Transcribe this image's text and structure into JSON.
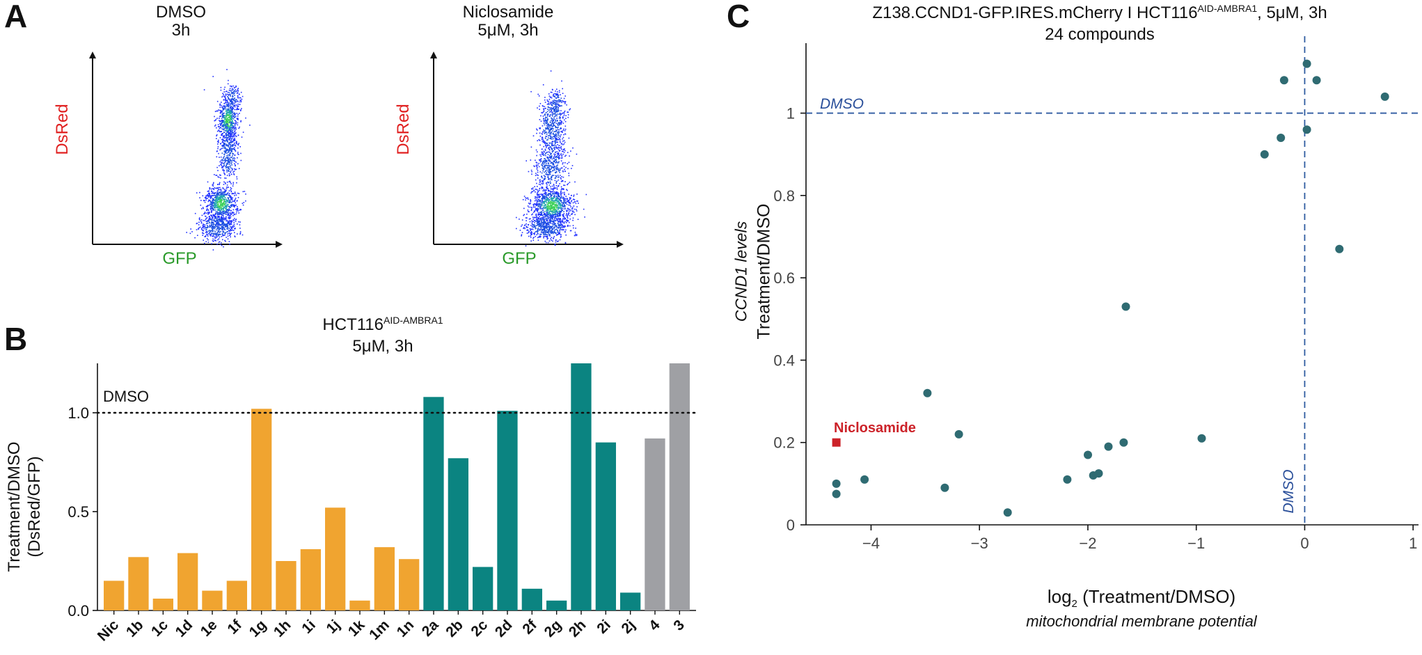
{
  "panel_a": {
    "letter": "A",
    "plots": [
      {
        "title_line1": "DMSO",
        "title_line2": "3h",
        "ylabel": "DsRed",
        "xlabel": "GFP"
      },
      {
        "title_line1": "Niclosamide",
        "title_line2": "5μM, 3h",
        "ylabel": "DsRed",
        "xlabel": "GFP"
      }
    ]
  },
  "panel_b": {
    "letter": "B",
    "title_main": "HCT116",
    "title_sup": "AID-AMBRA1",
    "title_line2": "5μM, 3h",
    "ref_label": "DMSO",
    "ylabel_line1": "Treatment/DMSO",
    "ylabel_line2": "(DsRed/GFP)"
  },
  "panel_c": {
    "letter": "C",
    "title_part1": "Z138.CCND1-GFP.IRES.mCherry I HCT116",
    "title_sup": "AID-AMBRA1",
    "title_part2": ", 5μM, 3h",
    "subtitle": "24 compounds",
    "ylabel_italic": "CCND1 levels",
    "ylabel": "Treatment/DMSO",
    "xlabel_prefix": "log",
    "xlabel_sub": "2",
    "xlabel_suffix": " (Treatment/DMSO)",
    "xlabel_italic": "mitochondrial membrane potential",
    "hline_label": "DMSO",
    "vline_label": "DMSO",
    "highlight_label": "Niclosamide"
  },
  "chart_data": [
    {
      "type": "bar",
      "categories": [
        "Nic",
        "1b",
        "1c",
        "1d",
        "1e",
        "1f",
        "1g",
        "1h",
        "1i",
        "1j",
        "1k",
        "1m",
        "1n",
        "2a",
        "2b",
        "2c",
        "2d",
        "2f",
        "2g",
        "2h",
        "2i",
        "2j",
        "4",
        "3"
      ],
      "values": [
        0.15,
        0.27,
        0.06,
        0.29,
        0.1,
        0.15,
        1.02,
        0.25,
        0.31,
        0.52,
        0.05,
        0.32,
        0.26,
        1.08,
        0.77,
        0.22,
        1.01,
        0.11,
        0.05,
        1.25,
        0.85,
        0.09,
        0.87,
        1.25
      ],
      "group_colors": [
        "#f0a430",
        "#f0a430",
        "#f0a430",
        "#f0a430",
        "#f0a430",
        "#f0a430",
        "#f0a430",
        "#f0a430",
        "#f0a430",
        "#f0a430",
        "#f0a430",
        "#f0a430",
        "#f0a430",
        "#0b8481",
        "#0b8481",
        "#0b8481",
        "#0b8481",
        "#0b8481",
        "#0b8481",
        "#0b8481",
        "#0b8481",
        "#0b8481",
        "#9fa0a4",
        "#9fa0a4"
      ],
      "ylim": [
        0,
        1.25
      ],
      "yticks": [
        "0.0",
        "0.5",
        "1.0"
      ],
      "reference_line": 1.0
    },
    {
      "type": "scatter",
      "xlim": [
        -4.6,
        1.05
      ],
      "ylim": [
        0,
        1.17
      ],
      "xticks": [
        "−4",
        "−3",
        "−2",
        "−1",
        "0",
        "1"
      ],
      "yticks": [
        "0",
        "0.2",
        "0.4",
        "0.6",
        "0.8",
        "1"
      ],
      "reference_lines": {
        "x": 0,
        "y": 1
      },
      "points_x": [
        -4.32,
        -4.32,
        -4.06,
        -3.48,
        -3.32,
        -3.19,
        -2.74,
        -2.19,
        -2.0,
        -1.95,
        -1.9,
        -1.81,
        -1.67,
        -1.65,
        -0.95,
        -0.37,
        -0.22,
        -0.19,
        0.02,
        0.02,
        0.11,
        0.32,
        0.74
      ],
      "points_y": [
        0.1,
        0.075,
        0.11,
        0.32,
        0.09,
        0.22,
        0.03,
        0.11,
        0.17,
        0.12,
        0.125,
        0.19,
        0.2,
        0.53,
        0.21,
        0.9,
        0.94,
        1.08,
        0.96,
        1.12,
        1.08,
        0.67,
        1.04
      ],
      "highlight": {
        "name": "Niclosamide",
        "x": -4.32,
        "y": 0.2
      },
      "point_color": "#2f6b72",
      "highlight_color": "#cc2229"
    }
  ]
}
